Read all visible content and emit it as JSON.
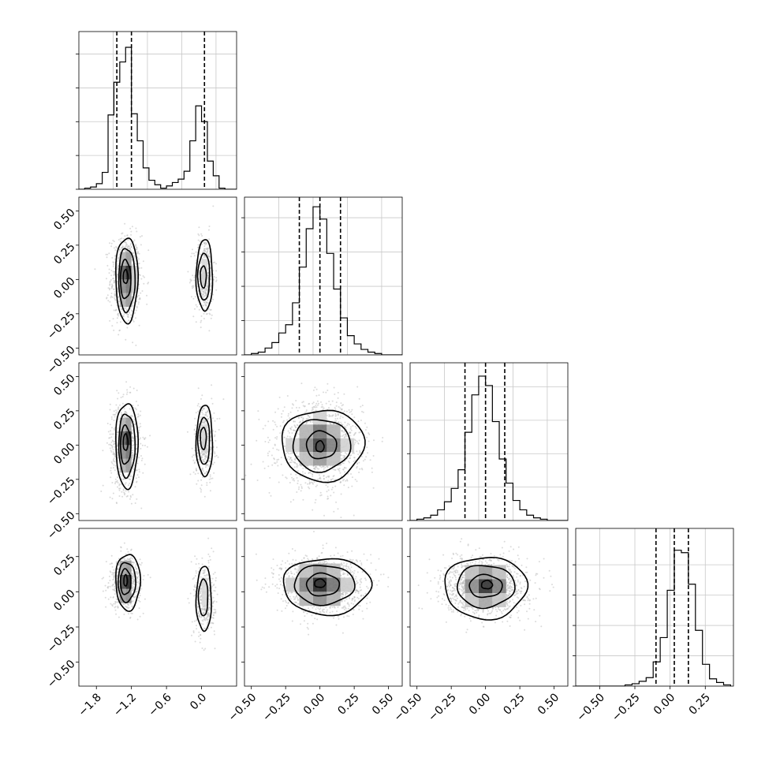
{
  "chart_data": [
    {
      "id": "hist-p0",
      "type": "histogram",
      "x_range": [
        -2.1,
        0.6
      ],
      "bin_edges": [
        -2.1,
        -2.0,
        -1.9,
        -1.8,
        -1.7,
        -1.6,
        -1.5,
        -1.4,
        -1.3,
        -1.2,
        -1.1,
        -1.0,
        -0.9,
        -0.8,
        -0.7,
        -0.6,
        -0.5,
        -0.4,
        -0.3,
        -0.2,
        -0.1,
        0.0,
        0.1,
        0.2,
        0.3,
        0.4,
        0.5,
        0.6
      ],
      "counts": [
        0,
        1,
        2,
        5,
        15,
        66,
        95,
        113,
        126,
        67,
        43,
        19,
        8,
        4,
        1,
        3,
        6,
        9,
        16,
        43,
        74,
        60,
        25,
        12,
        1,
        0,
        0
      ],
      "quantiles": [
        -1.45,
        -1.2,
        0.05
      ],
      "y_max": 140,
      "y_ticks": [
        0,
        30,
        60,
        90,
        120
      ],
      "x_ticks": [],
      "grid": true
    },
    {
      "id": "hist-p1",
      "type": "histogram",
      "x_range": [
        -0.55,
        0.6
      ],
      "bin_edges": [
        -0.55,
        -0.5,
        -0.45,
        -0.4,
        -0.35,
        -0.3,
        -0.25,
        -0.2,
        -0.15,
        -0.1,
        -0.05,
        0.0,
        0.05,
        0.1,
        0.15,
        0.2,
        0.25,
        0.3,
        0.35,
        0.4,
        0.45,
        0.5,
        0.55,
        0.6
      ],
      "counts": [
        0,
        1,
        2,
        5,
        9,
        16,
        22,
        38,
        64,
        92,
        108,
        99,
        74,
        48,
        27,
        14,
        8,
        4,
        2,
        1,
        0,
        0,
        0
      ],
      "quantiles": [
        -0.15,
        0.0,
        0.15
      ],
      "y_max": 115,
      "y_ticks": [
        0,
        25,
        50,
        75,
        100
      ],
      "x_ticks": [],
      "grid": true
    },
    {
      "id": "hist-p2",
      "type": "histogram",
      "x_range": [
        -0.55,
        0.6
      ],
      "bin_edges": [
        -0.55,
        -0.5,
        -0.45,
        -0.4,
        -0.35,
        -0.3,
        -0.25,
        -0.2,
        -0.15,
        -0.1,
        -0.05,
        0.0,
        0.05,
        0.1,
        0.15,
        0.2,
        0.25,
        0.3,
        0.35,
        0.4,
        0.45,
        0.5,
        0.55,
        0.6
      ],
      "counts": [
        0,
        1,
        2,
        4,
        8,
        14,
        24,
        38,
        66,
        94,
        108,
        101,
        74,
        46,
        28,
        15,
        8,
        4,
        2,
        1,
        0,
        0,
        0
      ],
      "quantiles": [
        -0.15,
        0.0,
        0.14
      ],
      "y_max": 118,
      "y_ticks": [
        0,
        25,
        50,
        75,
        100
      ],
      "x_ticks": [],
      "grid": true
    },
    {
      "id": "hist-p3",
      "type": "histogram",
      "x_range": [
        -0.67,
        0.45
      ],
      "bin_edges": [
        -0.67,
        -0.62,
        -0.57,
        -0.52,
        -0.47,
        -0.42,
        -0.37,
        -0.32,
        -0.27,
        -0.22,
        -0.17,
        -0.12,
        -0.07,
        -0.02,
        0.03,
        0.08,
        0.13,
        0.18,
        0.23,
        0.28,
        0.33,
        0.38,
        0.43
      ],
      "counts": [
        0,
        0,
        0,
        0,
        0,
        0,
        0,
        1,
        2,
        4,
        7,
        20,
        40,
        79,
        112,
        110,
        84,
        46,
        18,
        6,
        3,
        1
      ],
      "quantiles": [
        -0.1,
        0.03,
        0.13
      ],
      "y_max": 130,
      "y_ticks": [
        0,
        25,
        50,
        75,
        100
      ],
      "x_ticks_labels": [
        "−0.50",
        "−0.25",
        "0.00",
        "0.25"
      ],
      "x_ticks": [
        -0.5,
        -0.25,
        0.0,
        0.25
      ],
      "grid": true
    },
    {
      "id": "scatter-p1-p0",
      "type": "scatter",
      "x_range": [
        -2.1,
        0.6
      ],
      "y_range": [
        -0.55,
        0.6
      ],
      "blobs": [
        {
          "cx": -1.3,
          "cy": 0.0,
          "sx": 0.13,
          "sy": 0.16,
          "n": 750
        },
        {
          "cx": 0.05,
          "cy": 0.02,
          "sx": 0.09,
          "sy": 0.15,
          "n": 420
        }
      ],
      "density_cells": [
        {
          "x": -1.4,
          "y": -0.1,
          "w": 0.1,
          "h": 0.1,
          "shade": 0.55
        },
        {
          "x": -1.4,
          "y": 0.0,
          "w": 0.1,
          "h": 0.1,
          "shade": 0.35
        },
        {
          "x": -1.3,
          "y": -0.1,
          "w": 0.1,
          "h": 0.1,
          "shade": 0.45
        },
        {
          "x": -1.3,
          "y": 0.0,
          "w": 0.1,
          "h": 0.1,
          "shade": 0.15
        },
        {
          "x": -1.4,
          "y": 0.1,
          "w": 0.1,
          "h": 0.1,
          "shade": 0.7
        },
        {
          "x": -1.4,
          "y": -0.2,
          "w": 0.1,
          "h": 0.1,
          "shade": 0.7
        },
        {
          "x": -1.3,
          "y": 0.1,
          "w": 0.1,
          "h": 0.1,
          "shade": 0.6
        },
        {
          "x": -1.3,
          "y": -0.2,
          "w": 0.1,
          "h": 0.1,
          "shade": 0.6
        },
        {
          "x": -1.2,
          "y": -0.1,
          "w": 0.1,
          "h": 0.1,
          "shade": 0.8
        },
        {
          "x": -1.2,
          "y": 0.0,
          "w": 0.1,
          "h": 0.1,
          "shade": 0.8
        },
        {
          "x": 0.0,
          "y": -0.05,
          "w": 0.1,
          "h": 0.1,
          "shade": 0.82
        },
        {
          "x": 0.0,
          "y": 0.05,
          "w": 0.1,
          "h": 0.1,
          "shade": 0.85
        }
      ],
      "contours": [
        {
          "cx": -1.28,
          "cy": 0.0,
          "rx": 0.19,
          "ry": 0.31
        },
        {
          "cx": -1.28,
          "cy": 0.0,
          "rx": 0.14,
          "ry": 0.23
        },
        {
          "cx": -1.3,
          "cy": 0.0,
          "rx": 0.09,
          "ry": 0.14
        },
        {
          "cx": -1.3,
          "cy": 0.02,
          "rx": 0.04,
          "ry": 0.05
        },
        {
          "cx": 0.05,
          "cy": 0.03,
          "rx": 0.14,
          "ry": 0.26
        },
        {
          "cx": 0.04,
          "cy": 0.02,
          "rx": 0.1,
          "ry": 0.17
        },
        {
          "cx": 0.03,
          "cy": 0.02,
          "rx": 0.05,
          "ry": 0.08
        }
      ],
      "y_ticks": [
        -0.5,
        -0.25,
        0.0,
        0.25,
        0.5
      ],
      "y_tick_labels": [
        "−0.50",
        "−0.25",
        "0.00",
        "0.25",
        "0.50"
      ],
      "x_ticks": []
    },
    {
      "id": "scatter-p2-p0",
      "type": "scatter",
      "x_range": [
        -2.1,
        0.6
      ],
      "y_range": [
        -0.55,
        0.6
      ],
      "blobs": [
        {
          "cx": -1.3,
          "cy": 0.0,
          "sx": 0.13,
          "sy": 0.16,
          "n": 750
        },
        {
          "cx": 0.05,
          "cy": 0.03,
          "sx": 0.09,
          "sy": 0.14,
          "n": 420
        }
      ],
      "density_cells": [
        {
          "x": -1.4,
          "y": -0.1,
          "w": 0.1,
          "h": 0.1,
          "shade": 0.55
        },
        {
          "x": -1.4,
          "y": 0.0,
          "w": 0.1,
          "h": 0.1,
          "shade": 0.4
        },
        {
          "x": -1.3,
          "y": -0.1,
          "w": 0.1,
          "h": 0.1,
          "shade": 0.45
        },
        {
          "x": -1.3,
          "y": 0.0,
          "w": 0.1,
          "h": 0.1,
          "shade": 0.15
        },
        {
          "x": -1.4,
          "y": 0.1,
          "w": 0.1,
          "h": 0.1,
          "shade": 0.7
        },
        {
          "x": -1.4,
          "y": -0.2,
          "w": 0.1,
          "h": 0.1,
          "shade": 0.7
        },
        {
          "x": -1.3,
          "y": 0.1,
          "w": 0.1,
          "h": 0.1,
          "shade": 0.6
        },
        {
          "x": -1.3,
          "y": -0.2,
          "w": 0.1,
          "h": 0.1,
          "shade": 0.6
        },
        {
          "x": 0.0,
          "y": -0.05,
          "w": 0.1,
          "h": 0.1,
          "shade": 0.82
        },
        {
          "x": 0.0,
          "y": 0.05,
          "w": 0.1,
          "h": 0.1,
          "shade": 0.85
        }
      ],
      "contours": [
        {
          "cx": -1.28,
          "cy": 0.0,
          "rx": 0.19,
          "ry": 0.31
        },
        {
          "cx": -1.28,
          "cy": 0.0,
          "rx": 0.14,
          "ry": 0.23
        },
        {
          "cx": -1.3,
          "cy": 0.0,
          "rx": 0.09,
          "ry": 0.14
        },
        {
          "cx": -1.3,
          "cy": 0.02,
          "rx": 0.04,
          "ry": 0.06
        },
        {
          "cx": 0.05,
          "cy": 0.03,
          "rx": 0.14,
          "ry": 0.26
        },
        {
          "cx": 0.04,
          "cy": 0.03,
          "rx": 0.1,
          "ry": 0.17
        },
        {
          "cx": 0.03,
          "cy": 0.05,
          "rx": 0.05,
          "ry": 0.08
        }
      ],
      "y_ticks": [
        -0.5,
        -0.25,
        0.0,
        0.25,
        0.5
      ],
      "y_tick_labels": [
        "−0.50",
        "−0.25",
        "0.00",
        "0.25",
        "0.50"
      ],
      "x_ticks": []
    },
    {
      "id": "scatter-p2-p1",
      "type": "scatter",
      "x_range": [
        -0.55,
        0.6
      ],
      "y_range": [
        -0.55,
        0.6
      ],
      "blobs": [
        {
          "cx": 0.0,
          "cy": 0.0,
          "sx": 0.15,
          "sy": 0.15,
          "n": 1400
        }
      ],
      "density_cells": [
        {
          "x": -0.05,
          "y": -0.05,
          "w": 0.1,
          "h": 0.1,
          "shade": 0.25
        },
        {
          "x": -0.05,
          "y": 0.05,
          "w": 0.1,
          "h": 0.1,
          "shade": 0.45
        },
        {
          "x": -0.15,
          "y": -0.05,
          "w": 0.1,
          "h": 0.1,
          "shade": 0.55
        },
        {
          "x": 0.05,
          "y": -0.05,
          "w": 0.1,
          "h": 0.1,
          "shade": 0.5
        },
        {
          "x": -0.05,
          "y": -0.15,
          "w": 0.1,
          "h": 0.1,
          "shade": 0.6
        },
        {
          "x": -0.15,
          "y": 0.05,
          "w": 0.1,
          "h": 0.1,
          "shade": 0.7
        },
        {
          "x": 0.05,
          "y": 0.05,
          "w": 0.1,
          "h": 0.1,
          "shade": 0.7
        },
        {
          "x": -0.15,
          "y": -0.15,
          "w": 0.1,
          "h": 0.1,
          "shade": 0.75
        },
        {
          "x": 0.05,
          "y": -0.15,
          "w": 0.1,
          "h": 0.1,
          "shade": 0.75
        },
        {
          "x": -0.25,
          "y": -0.05,
          "w": 0.1,
          "h": 0.1,
          "shade": 0.82
        },
        {
          "x": 0.15,
          "y": -0.05,
          "w": 0.1,
          "h": 0.1,
          "shade": 0.82
        },
        {
          "x": -0.05,
          "y": 0.15,
          "w": 0.1,
          "h": 0.1,
          "shade": 0.82
        }
      ],
      "contours": [
        {
          "cx": 0.02,
          "cy": 0.0,
          "rx": 0.3,
          "ry": 0.26
        },
        {
          "cx": 0.01,
          "cy": 0.0,
          "rx": 0.21,
          "ry": 0.19
        },
        {
          "cx": 0.01,
          "cy": 0.0,
          "rx": 0.11,
          "ry": 0.1
        },
        {
          "cx": 0.0,
          "cy": -0.01,
          "rx": 0.03,
          "ry": 0.04
        }
      ],
      "y_ticks": [
        -0.5,
        -0.25,
        0.0,
        0.25,
        0.5
      ],
      "x_ticks": []
    },
    {
      "id": "scatter-p3-p0",
      "type": "scatter",
      "x_range": [
        -2.1,
        0.6
      ],
      "y_range": [
        -0.67,
        0.45
      ],
      "blobs": [
        {
          "cx": -1.3,
          "cy": 0.07,
          "sx": 0.13,
          "sy": 0.09,
          "n": 700
        },
        {
          "cx": 0.05,
          "cy": -0.05,
          "sx": 0.09,
          "sy": 0.13,
          "n": 400
        }
      ],
      "density_cells": [
        {
          "x": -1.4,
          "y": 0.02,
          "w": 0.1,
          "h": 0.1,
          "shade": 0.3
        },
        {
          "x": -1.3,
          "y": 0.02,
          "w": 0.1,
          "h": 0.1,
          "shade": 0.15
        },
        {
          "x": -1.4,
          "y": -0.08,
          "w": 0.1,
          "h": 0.1,
          "shade": 0.6
        },
        {
          "x": -1.3,
          "y": -0.08,
          "w": 0.1,
          "h": 0.1,
          "shade": 0.55
        },
        {
          "x": -1.4,
          "y": 0.12,
          "w": 0.1,
          "h": 0.1,
          "shade": 0.65
        },
        {
          "x": -1.3,
          "y": 0.12,
          "w": 0.1,
          "h": 0.1,
          "shade": 0.6
        },
        {
          "x": 0.0,
          "y": -0.1,
          "w": 0.1,
          "h": 0.1,
          "shade": 0.85
        },
        {
          "x": 0.0,
          "y": 0.0,
          "w": 0.1,
          "h": 0.1,
          "shade": 0.85
        }
      ],
      "contours": [
        {
          "cx": -1.26,
          "cy": 0.07,
          "rx": 0.21,
          "ry": 0.2
        },
        {
          "cx": -1.28,
          "cy": 0.07,
          "rx": 0.15,
          "ry": 0.14
        },
        {
          "cx": -1.3,
          "cy": 0.07,
          "rx": 0.09,
          "ry": 0.09
        },
        {
          "cx": -1.3,
          "cy": 0.08,
          "rx": 0.03,
          "ry": 0.04
        },
        {
          "cx": 0.04,
          "cy": -0.05,
          "rx": 0.13,
          "ry": 0.23
        },
        {
          "cx": 0.03,
          "cy": -0.04,
          "rx": 0.08,
          "ry": 0.13
        }
      ],
      "y_ticks": [
        -0.5,
        -0.25,
        0.0,
        0.25
      ],
      "y_tick_labels": [
        "−0.50",
        "−0.25",
        "0.00",
        "0.25"
      ],
      "x_ticks": [
        -1.8,
        -1.2,
        -0.6,
        0.0
      ],
      "x_tick_labels": [
        "−1.8",
        "−1.2",
        "−0.6",
        "0.0"
      ]
    },
    {
      "id": "scatter-p3-p1",
      "type": "scatter",
      "x_range": [
        -0.55,
        0.6
      ],
      "y_range": [
        -0.67,
        0.45
      ],
      "blobs": [
        {
          "cx": 0.02,
          "cy": 0.05,
          "sx": 0.15,
          "sy": 0.1,
          "n": 1400
        }
      ],
      "density_cells": [
        {
          "x": -0.05,
          "y": 0.0,
          "w": 0.1,
          "h": 0.1,
          "shade": 0.15
        },
        {
          "x": -0.15,
          "y": 0.0,
          "w": 0.1,
          "h": 0.1,
          "shade": 0.5
        },
        {
          "x": 0.05,
          "y": 0.0,
          "w": 0.1,
          "h": 0.1,
          "shade": 0.45
        },
        {
          "x": -0.05,
          "y": -0.1,
          "w": 0.1,
          "h": 0.1,
          "shade": 0.55
        },
        {
          "x": -0.05,
          "y": 0.1,
          "w": 0.1,
          "h": 0.1,
          "shade": 0.6
        },
        {
          "x": -0.15,
          "y": -0.1,
          "w": 0.1,
          "h": 0.1,
          "shade": 0.7
        },
        {
          "x": 0.05,
          "y": -0.1,
          "w": 0.1,
          "h": 0.1,
          "shade": 0.7
        },
        {
          "x": -0.15,
          "y": 0.1,
          "w": 0.1,
          "h": 0.1,
          "shade": 0.75
        },
        {
          "x": 0.05,
          "y": 0.1,
          "w": 0.1,
          "h": 0.1,
          "shade": 0.75
        },
        {
          "x": -0.25,
          "y": 0.0,
          "w": 0.1,
          "h": 0.1,
          "shade": 0.8
        },
        {
          "x": 0.15,
          "y": 0.0,
          "w": 0.1,
          "h": 0.1,
          "shade": 0.8
        }
      ],
      "contours": [
        {
          "cx": 0.05,
          "cy": 0.04,
          "rx": 0.32,
          "ry": 0.2
        },
        {
          "cx": 0.03,
          "cy": 0.05,
          "rx": 0.22,
          "ry": 0.14
        },
        {
          "cx": 0.02,
          "cy": 0.05,
          "rx": 0.12,
          "ry": 0.08
        },
        {
          "cx": 0.0,
          "cy": 0.06,
          "rx": 0.04,
          "ry": 0.03
        }
      ],
      "y_ticks": [
        -0.5,
        -0.25,
        0.0,
        0.25
      ],
      "x_ticks": [
        -0.5,
        -0.25,
        0.0,
        0.25,
        0.5
      ],
      "x_tick_labels": [
        "−0.50",
        "−0.25",
        "0.00",
        "0.25",
        "0.50"
      ]
    },
    {
      "id": "scatter-p3-p2",
      "type": "scatter",
      "x_range": [
        -0.55,
        0.6
      ],
      "y_range": [
        -0.67,
        0.45
      ],
      "blobs": [
        {
          "cx": 0.0,
          "cy": 0.04,
          "sx": 0.15,
          "sy": 0.1,
          "n": 1400
        }
      ],
      "density_cells": [
        {
          "x": -0.05,
          "y": -0.01,
          "w": 0.1,
          "h": 0.1,
          "shade": 0.2
        },
        {
          "x": -0.15,
          "y": -0.01,
          "w": 0.1,
          "h": 0.1,
          "shade": 0.55
        },
        {
          "x": 0.05,
          "y": -0.01,
          "w": 0.1,
          "h": 0.1,
          "shade": 0.5
        },
        {
          "x": -0.05,
          "y": 0.09,
          "w": 0.1,
          "h": 0.1,
          "shade": 0.6
        },
        {
          "x": -0.05,
          "y": -0.11,
          "w": 0.1,
          "h": 0.1,
          "shade": 0.65
        },
        {
          "x": -0.15,
          "y": 0.09,
          "w": 0.1,
          "h": 0.1,
          "shade": 0.75
        },
        {
          "x": 0.05,
          "y": 0.09,
          "w": 0.1,
          "h": 0.1,
          "shade": 0.75
        },
        {
          "x": -0.15,
          "y": -0.11,
          "w": 0.1,
          "h": 0.1,
          "shade": 0.78
        },
        {
          "x": 0.05,
          "y": -0.11,
          "w": 0.1,
          "h": 0.1,
          "shade": 0.78
        }
      ],
      "contours": [
        {
          "cx": 0.0,
          "cy": 0.03,
          "rx": 0.3,
          "ry": 0.22
        },
        {
          "cx": 0.0,
          "cy": 0.04,
          "rx": 0.21,
          "ry": 0.15
        },
        {
          "cx": 0.0,
          "cy": 0.04,
          "rx": 0.12,
          "ry": 0.08
        },
        {
          "cx": 0.01,
          "cy": 0.05,
          "rx": 0.04,
          "ry": 0.03
        }
      ],
      "y_ticks": [
        -0.5,
        -0.25,
        0.0,
        0.25
      ],
      "x_ticks": [
        -0.5,
        -0.25,
        0.0,
        0.25,
        0.5
      ],
      "x_tick_labels": [
        "−0.50",
        "−0.25",
        "0.00",
        "0.25",
        "0.50"
      ]
    }
  ]
}
